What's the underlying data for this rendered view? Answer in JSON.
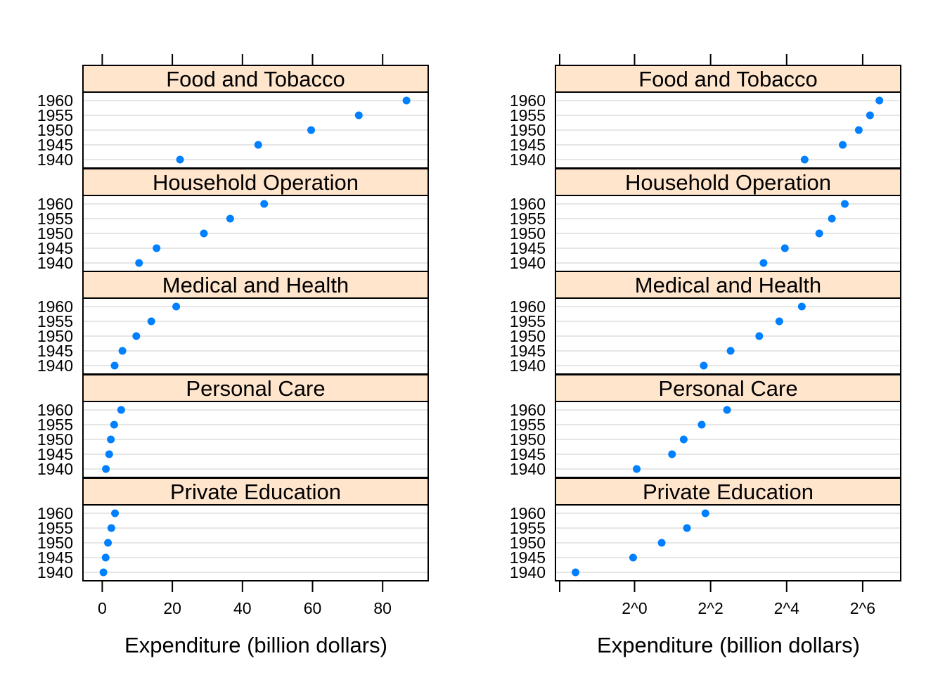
{
  "chart_data": [
    {
      "type": "scatter",
      "subtype": "dotplot",
      "xlabel": "Expenditure (billion dollars)",
      "x_scale": "linear",
      "xlim": [
        -5.5,
        93
      ],
      "x_ticks": [
        0,
        20,
        40,
        60,
        80
      ],
      "x_tick_labels": [
        "0",
        "20",
        "40",
        "60",
        "80"
      ],
      "years": [
        "1940",
        "1945",
        "1950",
        "1955",
        "1960"
      ],
      "grid": true,
      "panels": [
        {
          "name": "Private Education",
          "values": [
            0.341,
            0.974,
            1.64,
            2.6,
            3.64
          ]
        },
        {
          "name": "Personal Care",
          "values": [
            1.04,
            1.98,
            2.45,
            3.4,
            5.4
          ]
        },
        {
          "name": "Medical and Health",
          "values": [
            3.53,
            5.76,
            9.71,
            14.0,
            21.1
          ]
        },
        {
          "name": "Household Operation",
          "values": [
            10.5,
            15.5,
            29.0,
            36.5,
            46.2
          ]
        },
        {
          "name": "Food and Tobacco",
          "values": [
            22.2,
            44.5,
            59.6,
            73.2,
            86.8
          ]
        }
      ]
    },
    {
      "type": "scatter",
      "subtype": "dotplot",
      "xlabel": "Expenditure (billion dollars)",
      "x_scale": "log2",
      "xlim": [
        -2.08,
        7.0
      ],
      "x_ticks": [
        0,
        2,
        4,
        6
      ],
      "x_tick_labels": [
        "2^0",
        "2^2",
        "2^4",
        "2^6"
      ],
      "years": [
        "1940",
        "1945",
        "1950",
        "1955",
        "1960"
      ],
      "grid": true,
      "panels": [
        {
          "name": "Private Education",
          "values": [
            0.341,
            0.974,
            1.64,
            2.6,
            3.64
          ]
        },
        {
          "name": "Personal Care",
          "values": [
            1.04,
            1.98,
            2.45,
            3.4,
            5.4
          ]
        },
        {
          "name": "Medical and Health",
          "values": [
            3.53,
            5.76,
            9.71,
            14.0,
            21.1
          ]
        },
        {
          "name": "Household Operation",
          "values": [
            10.5,
            15.5,
            29.0,
            36.5,
            46.2
          ]
        },
        {
          "name": "Food and Tobacco",
          "values": [
            22.2,
            44.5,
            59.6,
            73.2,
            86.8
          ]
        }
      ]
    }
  ]
}
